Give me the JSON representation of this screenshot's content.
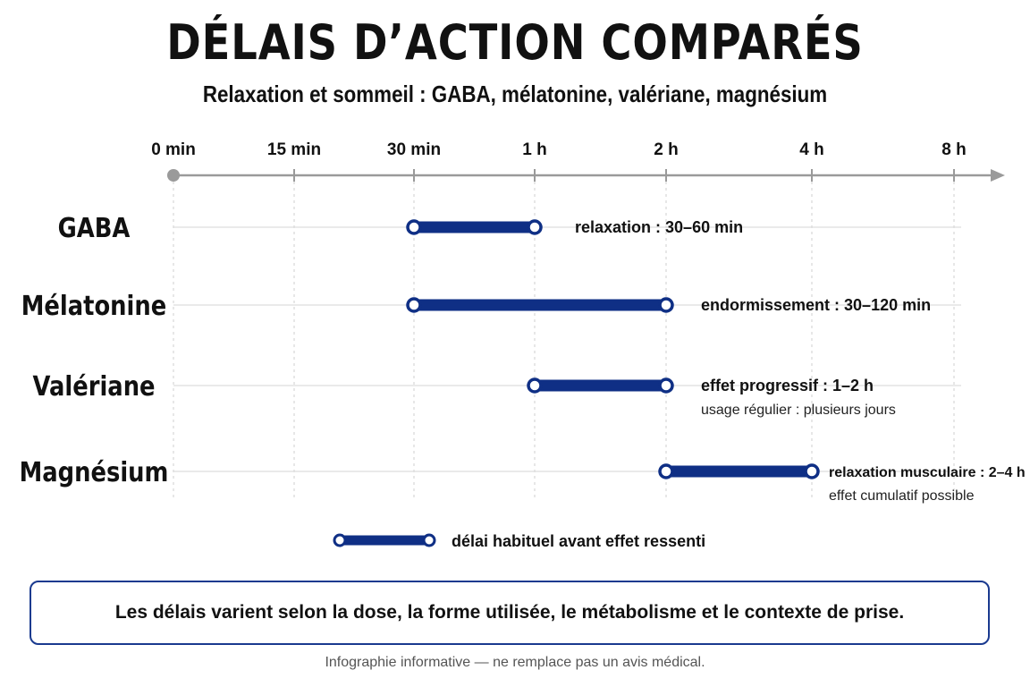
{
  "title": "DÉLAIS D’ACTION COMPARÉS",
  "subtitle": "Relaxation et sommeil : GABA, mélatonine, valériane, magnésium",
  "chart_data": {
    "type": "bar",
    "x_ticks": [
      {
        "label": "0 min",
        "minutes": 0
      },
      {
        "label": "15 min",
        "minutes": 15
      },
      {
        "label": "30 min",
        "minutes": 30
      },
      {
        "label": "1 h",
        "minutes": 60
      },
      {
        "label": "2 h",
        "minutes": 120
      },
      {
        "label": "4 h",
        "minutes": 240
      },
      {
        "label": "8 h",
        "minutes": 480
      }
    ],
    "x_unit": "minutes",
    "categories": [
      "GABA",
      "Mélatonine",
      "Valériane",
      "Magnésium"
    ],
    "series": [
      {
        "values": [
          {
            "category": "GABA",
            "start": 30,
            "end": 60,
            "label": "relaxation : 30–60 min",
            "note": ""
          },
          {
            "category": "Mélatonine",
            "start": 30,
            "end": 120,
            "label": "endormissement : 30–120 min",
            "note": ""
          },
          {
            "category": "Valériane",
            "start": 60,
            "end": 120,
            "label": "effet progressif : 1–2 h",
            "note": "usage régulier : plusieurs jours"
          },
          {
            "category": "Magnésium",
            "start": 120,
            "end": 240,
            "label": "relaxation musculaire : 2–4 h",
            "note": "effet cumulatif possible"
          }
        ]
      }
    ],
    "legend": {
      "label": "délai habituel avant effet ressenti",
      "placement": "bottom-center"
    },
    "grid": true,
    "bar_color": "#0f2f85"
  },
  "note": "Les délais varient selon la dose, la forme utilisée, le métabolisme et le contexte de prise.",
  "footer": "Infographie informative — ne remplace pas un avis médical."
}
